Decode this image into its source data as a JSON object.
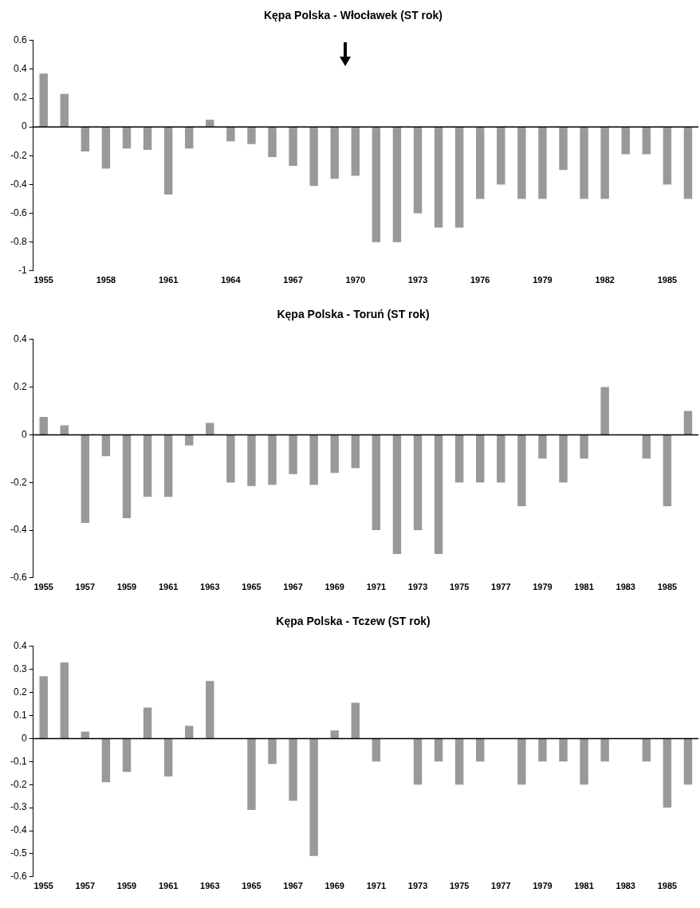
{
  "chart_data": [
    {
      "type": "bar",
      "title": "Kępa Polska - Włocławek (ST rok)",
      "categories": [
        "1955",
        null,
        null,
        "1958",
        null,
        null,
        "1961",
        null,
        null,
        "1964",
        null,
        null,
        "1967",
        null,
        null,
        "1970",
        null,
        null,
        "1973",
        null,
        null,
        "1976",
        null,
        null,
        "1979",
        null,
        null,
        "1982",
        null,
        null,
        "1985",
        null
      ],
      "values": [
        0.37,
        0.23,
        -0.17,
        -0.29,
        -0.15,
        -0.16,
        -0.47,
        -0.15,
        0.05,
        -0.1,
        -0.12,
        -0.21,
        -0.27,
        -0.41,
        -0.36,
        -0.34,
        -0.8,
        -0.8,
        -0.6,
        -0.7,
        -0.7,
        -0.5,
        -0.4,
        -0.5,
        -0.5,
        -0.3,
        -0.5,
        -0.5,
        -0.19,
        -0.19,
        -0.4,
        -0.5
      ],
      "color": "#999999",
      "ylim": [
        -1,
        0.6
      ],
      "yticks": [
        -1,
        -0.8,
        -0.6,
        -0.4,
        -0.2,
        0,
        0.2,
        0.4,
        0.6
      ],
      "grid": false,
      "legend": false,
      "ref_lines": [
        {
          "axis": "y",
          "value": 0,
          "color": "#000000"
        }
      ]
    },
    {
      "type": "bar",
      "title": "Kępa Polska - Toruń (ST rok)",
      "categories": [
        "1955",
        null,
        "1957",
        null,
        "1959",
        null,
        "1961",
        null,
        "1963",
        null,
        "1965",
        null,
        "1967",
        null,
        "1969",
        null,
        "1971",
        null,
        "1973",
        null,
        "1975",
        null,
        "1977",
        null,
        "1979",
        null,
        "1981",
        null,
        "1983",
        null,
        "1985",
        null
      ],
      "values": [
        0.075,
        0.04,
        -0.37,
        -0.09,
        -0.35,
        -0.26,
        -0.26,
        -0.045,
        0.05,
        -0.2,
        -0.215,
        -0.21,
        -0.165,
        -0.21,
        -0.16,
        -0.14,
        -0.4,
        -0.5,
        -0.4,
        -0.5,
        -0.2,
        -0.2,
        -0.2,
        -0.3,
        -0.1,
        -0.2,
        -0.1,
        0.2,
        0,
        -0.1,
        -0.3,
        0.1
      ],
      "color": "#999999",
      "ylim": [
        -0.6,
        0.4
      ],
      "yticks": [
        -0.6,
        -0.4,
        -0.2,
        0,
        0.2,
        0.4
      ],
      "grid": false,
      "legend": false,
      "ref_lines": [
        {
          "axis": "y",
          "value": 0,
          "color": "#000000"
        }
      ]
    },
    {
      "type": "bar",
      "title": "Kępa Polska - Tczew (ST rok)",
      "categories": [
        "1955",
        null,
        "1957",
        null,
        "1959",
        null,
        "1961",
        null,
        "1963",
        null,
        "1965",
        null,
        "1967",
        null,
        "1969",
        null,
        "1971",
        null,
        "1973",
        null,
        "1975",
        null,
        "1977",
        null,
        "1979",
        null,
        "1981",
        null,
        "1983",
        null,
        "1985",
        null
      ],
      "values": [
        0.27,
        0.33,
        0.03,
        -0.19,
        -0.145,
        0.135,
        -0.165,
        0.055,
        0.25,
        0,
        -0.31,
        -0.11,
        -0.27,
        -0.51,
        0.035,
        0.155,
        -0.1,
        0,
        -0.2,
        -0.1,
        -0.2,
        -0.1,
        0,
        -0.2,
        -0.1,
        -0.1,
        -0.2,
        -0.1,
        0,
        -0.1,
        -0.3,
        -0.2
      ],
      "color": "#999999",
      "ylim": [
        -0.6,
        0.4
      ],
      "yticks": [
        -0.6,
        -0.5,
        -0.4,
        -0.3,
        -0.2,
        -0.1,
        0,
        0.1,
        0.2,
        0.3,
        0.4
      ],
      "grid": false,
      "legend": false,
      "ref_lines": [
        {
          "axis": "y",
          "value": 0,
          "color": "#000000"
        }
      ]
    }
  ]
}
